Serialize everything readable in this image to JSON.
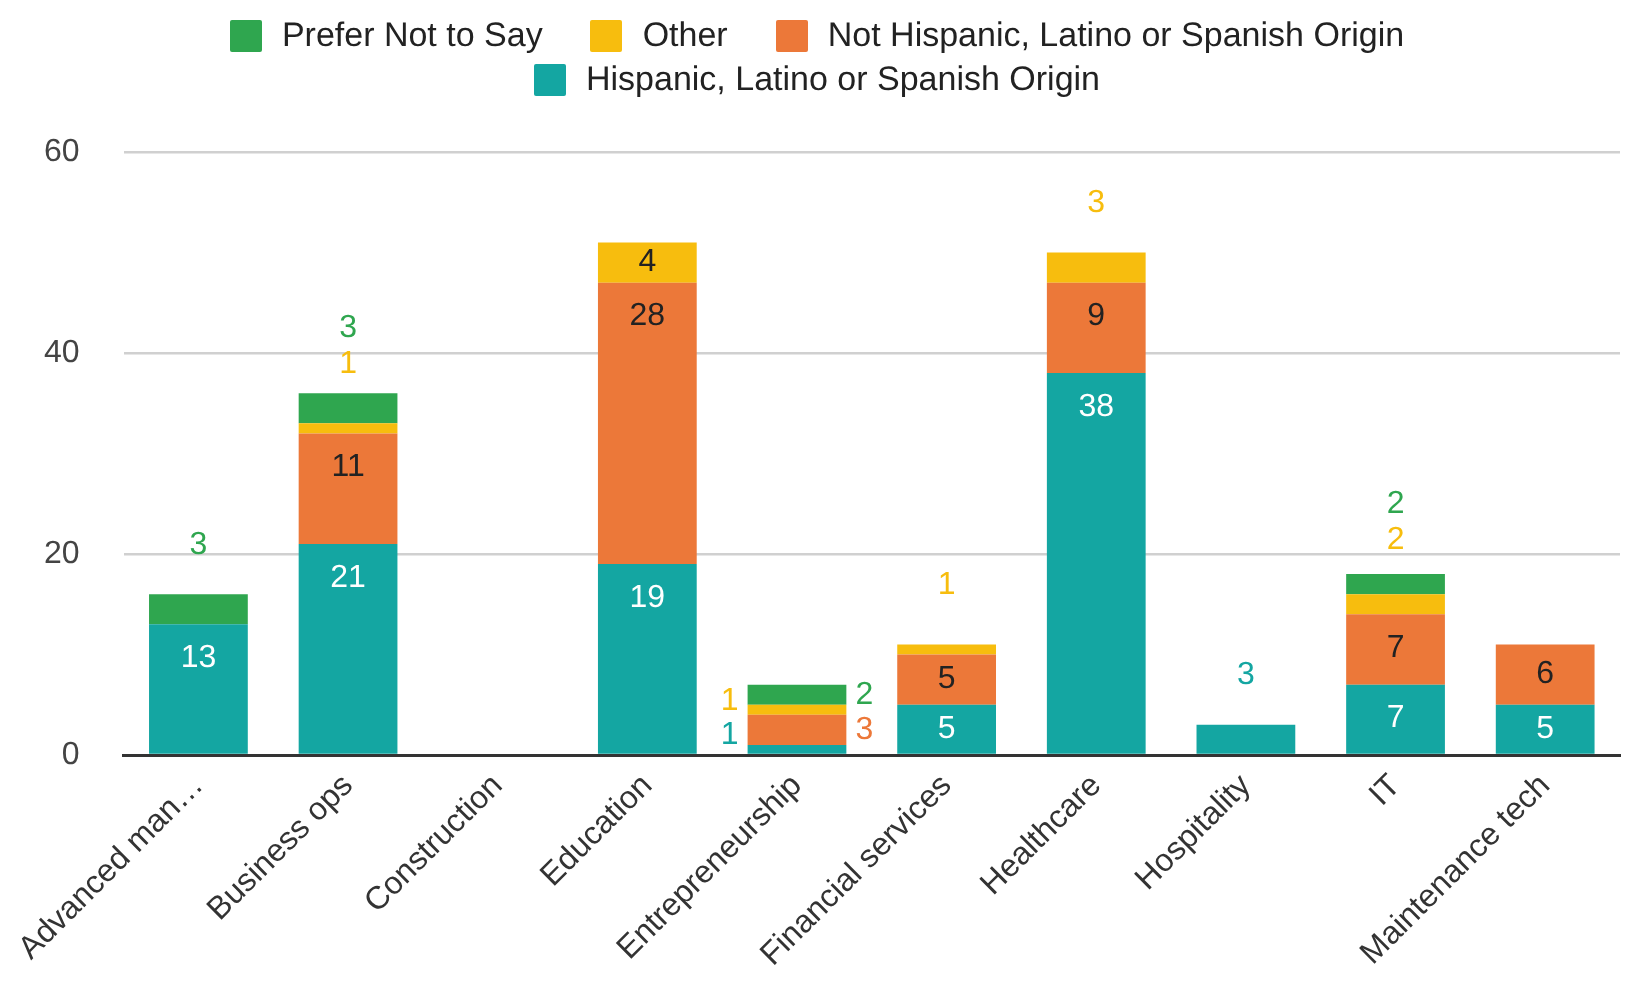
{
  "chart_data": {
    "type": "bar",
    "stacked": true,
    "categories": [
      "Advanced man…",
      "Business ops",
      "Construction",
      "Education",
      "Entrepreneurship",
      "Financial services",
      "Healthcare",
      "Hospitality",
      "IT",
      "Maintenance tech"
    ],
    "series": [
      {
        "name": "Hispanic, Latino or Spanish Origin",
        "color": "#14a6a2",
        "values": [
          13,
          21,
          null,
          19,
          1,
          5,
          38,
          3,
          7,
          5
        ]
      },
      {
        "name": "Not Hispanic, Latino or Spanish Origin",
        "color": "#ec7839",
        "values": [
          null,
          11,
          null,
          28,
          3,
          5,
          9,
          null,
          7,
          6
        ]
      },
      {
        "name": "Other",
        "color": "#f7bd0e",
        "values": [
          null,
          1,
          null,
          4,
          1,
          1,
          3,
          null,
          2,
          null
        ]
      },
      {
        "name": "Prefer Not to Say",
        "color": "#2fa64f",
        "values": [
          3,
          3,
          null,
          null,
          2,
          null,
          null,
          null,
          2,
          null
        ]
      }
    ],
    "ylim": [
      0,
      60
    ],
    "yticks": [
      0,
      20,
      40,
      60
    ],
    "grid": "y",
    "legend": "top",
    "data_labels": true
  }
}
